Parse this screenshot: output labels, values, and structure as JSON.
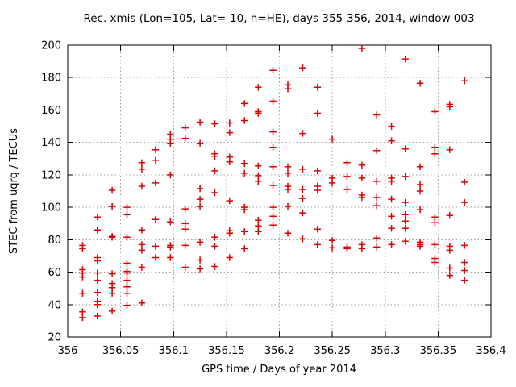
{
  "title": "Rec. xmis (Lon=105, Lat=-10, h=HE), days 355-356, 2014, window 003",
  "x_axis": {
    "label": "GPS time / Days of year 2014",
    "min": 356,
    "max": 356.4,
    "tick_values": [
      356,
      356.05,
      356.1,
      356.15,
      356.2,
      356.25,
      356.3,
      356.35,
      356.4
    ],
    "tick_labels": [
      "356",
      "356.05",
      "356.1",
      "356.15",
      "356.2",
      "356.25",
      "356.3",
      "356.35",
      "356.4"
    ]
  },
  "y_axis": {
    "label": "STEC from uqrg / TECUs",
    "min": 20,
    "max": 200,
    "tick_values": [
      20,
      40,
      60,
      80,
      100,
      120,
      140,
      160,
      180,
      200
    ],
    "tick_labels": [
      "20",
      "40",
      "60",
      "80",
      "100",
      "120",
      "140",
      "160",
      "180",
      "200"
    ]
  },
  "style": {
    "marker_shape": "plus",
    "marker_color": "#dd0000",
    "grid_color": "#9e9e9e",
    "frame_color": "#000000",
    "background": "#ffffff"
  },
  "chart_data": {
    "type": "scatter",
    "title": "Rec. xmis (Lon=105, Lat=-10, h=HE), days 355-356, 2014, window 003",
    "xlabel": "GPS time / Days of year 2014",
    "ylabel": "STEC from uqrg / TECUs",
    "xlim": [
      356,
      356.4
    ],
    "ylim": [
      20,
      200
    ],
    "grid": true,
    "legend": "none",
    "series": [
      {
        "name": "STEC",
        "marker": "plus",
        "color": "#dd0000",
        "points": [
          [
            356.014,
            76.5
          ],
          [
            356.014,
            74.5
          ],
          [
            356.014,
            61.5
          ],
          [
            356.014,
            59.5
          ],
          [
            356.014,
            57
          ],
          [
            356.014,
            47
          ],
          [
            356.014,
            35.5
          ],
          [
            356.014,
            32
          ],
          [
            356.028,
            94
          ],
          [
            356.028,
            86
          ],
          [
            356.028,
            69
          ],
          [
            356.028,
            67
          ],
          [
            356.028,
            59.5
          ],
          [
            356.028,
            55
          ],
          [
            356.028,
            47.5
          ],
          [
            356.028,
            42
          ],
          [
            356.028,
            40
          ],
          [
            356.028,
            33
          ],
          [
            356.042,
            110.5
          ],
          [
            356.042,
            100.5
          ],
          [
            356.042,
            82
          ],
          [
            356.042,
            81.5
          ],
          [
            356.042,
            59
          ],
          [
            356.042,
            53
          ],
          [
            356.042,
            50.5
          ],
          [
            356.042,
            47
          ],
          [
            356.042,
            36
          ],
          [
            356.056,
            100
          ],
          [
            356.056,
            95.5
          ],
          [
            356.056,
            81.5
          ],
          [
            356.056,
            65.5
          ],
          [
            356.056,
            60.5
          ],
          [
            356.056,
            59.5
          ],
          [
            356.056,
            55
          ],
          [
            356.056,
            51
          ],
          [
            356.056,
            47
          ],
          [
            356.056,
            39.5
          ],
          [
            356.07,
            127.5
          ],
          [
            356.07,
            123.5
          ],
          [
            356.07,
            113
          ],
          [
            356.07,
            86
          ],
          [
            356.07,
            77
          ],
          [
            356.07,
            73.5
          ],
          [
            356.07,
            63
          ],
          [
            356.07,
            41
          ],
          [
            356.083,
            135.5
          ],
          [
            356.083,
            129
          ],
          [
            356.083,
            115
          ],
          [
            356.083,
            92.5
          ],
          [
            356.083,
            76
          ],
          [
            356.083,
            69
          ],
          [
            356.097,
            145
          ],
          [
            356.097,
            142
          ],
          [
            356.097,
            139.5
          ],
          [
            356.097,
            120
          ],
          [
            356.097,
            91
          ],
          [
            356.097,
            76.5
          ],
          [
            356.097,
            75.5
          ],
          [
            356.097,
            69
          ],
          [
            356.111,
            149
          ],
          [
            356.111,
            142.5
          ],
          [
            356.111,
            99
          ],
          [
            356.111,
            90
          ],
          [
            356.111,
            86.5
          ],
          [
            356.111,
            76.5
          ],
          [
            356.111,
            63
          ],
          [
            356.125,
            152.5
          ],
          [
            356.125,
            139.5
          ],
          [
            356.125,
            111.5
          ],
          [
            356.125,
            105
          ],
          [
            356.125,
            100.5
          ],
          [
            356.125,
            78.5
          ],
          [
            356.125,
            67.5
          ],
          [
            356.125,
            62
          ],
          [
            356.139,
            151.5
          ],
          [
            356.139,
            133
          ],
          [
            356.139,
            131.5
          ],
          [
            356.139,
            122.5
          ],
          [
            356.139,
            109
          ],
          [
            356.139,
            81.5
          ],
          [
            356.139,
            76
          ],
          [
            356.139,
            63.5
          ],
          [
            356.153,
            152
          ],
          [
            356.153,
            146
          ],
          [
            356.153,
            131
          ],
          [
            356.153,
            128
          ],
          [
            356.153,
            104
          ],
          [
            356.153,
            85.5
          ],
          [
            356.153,
            84
          ],
          [
            356.153,
            69
          ],
          [
            356.167,
            164
          ],
          [
            356.167,
            153.5
          ],
          [
            356.167,
            127
          ],
          [
            356.167,
            121
          ],
          [
            356.167,
            100
          ],
          [
            356.167,
            98.5
          ],
          [
            356.167,
            85
          ],
          [
            356.167,
            74.5
          ],
          [
            356.18,
            174
          ],
          [
            356.18,
            159
          ],
          [
            356.18,
            158
          ],
          [
            356.18,
            125.5
          ],
          [
            356.18,
            119.5
          ],
          [
            356.18,
            116
          ],
          [
            356.18,
            92
          ],
          [
            356.18,
            88.5
          ],
          [
            356.18,
            85
          ],
          [
            356.194,
            184.5
          ],
          [
            356.194,
            165.5
          ],
          [
            356.194,
            146.5
          ],
          [
            356.194,
            137
          ],
          [
            356.194,
            125
          ],
          [
            356.194,
            113.5
          ],
          [
            356.194,
            100
          ],
          [
            356.194,
            94.5
          ],
          [
            356.194,
            89
          ],
          [
            356.208,
            175.5
          ],
          [
            356.208,
            173
          ],
          [
            356.208,
            125
          ],
          [
            356.208,
            121
          ],
          [
            356.208,
            113
          ],
          [
            356.208,
            111
          ],
          [
            356.208,
            100.5
          ],
          [
            356.208,
            84
          ],
          [
            356.222,
            186
          ],
          [
            356.222,
            145.5
          ],
          [
            356.222,
            123.5
          ],
          [
            356.222,
            111
          ],
          [
            356.222,
            105.5
          ],
          [
            356.222,
            96.5
          ],
          [
            356.222,
            80.5
          ],
          [
            356.236,
            174
          ],
          [
            356.236,
            158
          ],
          [
            356.236,
            122.5
          ],
          [
            356.236,
            113
          ],
          [
            356.236,
            110.5
          ],
          [
            356.236,
            86.5
          ],
          [
            356.236,
            77
          ],
          [
            356.25,
            142
          ],
          [
            356.25,
            118
          ],
          [
            356.25,
            115
          ],
          [
            356.25,
            79.5
          ],
          [
            356.25,
            75
          ],
          [
            356.264,
            127.5
          ],
          [
            356.264,
            119
          ],
          [
            356.264,
            111
          ],
          [
            356.264,
            75.5
          ],
          [
            356.264,
            74.5
          ],
          [
            356.278,
            198
          ],
          [
            356.278,
            126
          ],
          [
            356.278,
            118
          ],
          [
            356.278,
            107.5
          ],
          [
            356.278,
            106
          ],
          [
            356.278,
            77
          ],
          [
            356.278,
            74.5
          ],
          [
            356.292,
            157
          ],
          [
            356.292,
            135
          ],
          [
            356.292,
            116
          ],
          [
            356.292,
            106
          ],
          [
            356.292,
            101
          ],
          [
            356.292,
            81
          ],
          [
            356.292,
            75.5
          ],
          [
            356.306,
            150
          ],
          [
            356.306,
            141
          ],
          [
            356.306,
            118
          ],
          [
            356.306,
            116
          ],
          [
            356.306,
            105
          ],
          [
            356.306,
            94.5
          ],
          [
            356.306,
            87
          ],
          [
            356.306,
            77
          ],
          [
            356.319,
            191.5
          ],
          [
            356.319,
            136
          ],
          [
            356.319,
            119
          ],
          [
            356.319,
            103
          ],
          [
            356.319,
            95.5
          ],
          [
            356.319,
            91.5
          ],
          [
            356.319,
            87
          ],
          [
            356.319,
            79
          ],
          [
            356.333,
            176.5
          ],
          [
            356.333,
            125
          ],
          [
            356.333,
            114
          ],
          [
            356.333,
            110
          ],
          [
            356.333,
            98.5
          ],
          [
            356.333,
            78.5
          ],
          [
            356.333,
            77
          ],
          [
            356.333,
            76
          ],
          [
            356.347,
            159
          ],
          [
            356.347,
            137
          ],
          [
            356.347,
            133
          ],
          [
            356.347,
            94
          ],
          [
            356.347,
            90.5
          ],
          [
            356.347,
            77
          ],
          [
            356.347,
            68.5
          ],
          [
            356.347,
            66
          ],
          [
            356.361,
            163.5
          ],
          [
            356.361,
            162
          ],
          [
            356.361,
            135.5
          ],
          [
            356.361,
            95
          ],
          [
            356.361,
            76
          ],
          [
            356.361,
            73.5
          ],
          [
            356.361,
            62.5
          ],
          [
            356.361,
            58
          ],
          [
            356.375,
            178
          ],
          [
            356.375,
            115.5
          ],
          [
            356.375,
            103
          ],
          [
            356.375,
            76.5
          ],
          [
            356.375,
            66
          ],
          [
            356.375,
            61
          ],
          [
            356.375,
            55
          ]
        ]
      }
    ]
  }
}
